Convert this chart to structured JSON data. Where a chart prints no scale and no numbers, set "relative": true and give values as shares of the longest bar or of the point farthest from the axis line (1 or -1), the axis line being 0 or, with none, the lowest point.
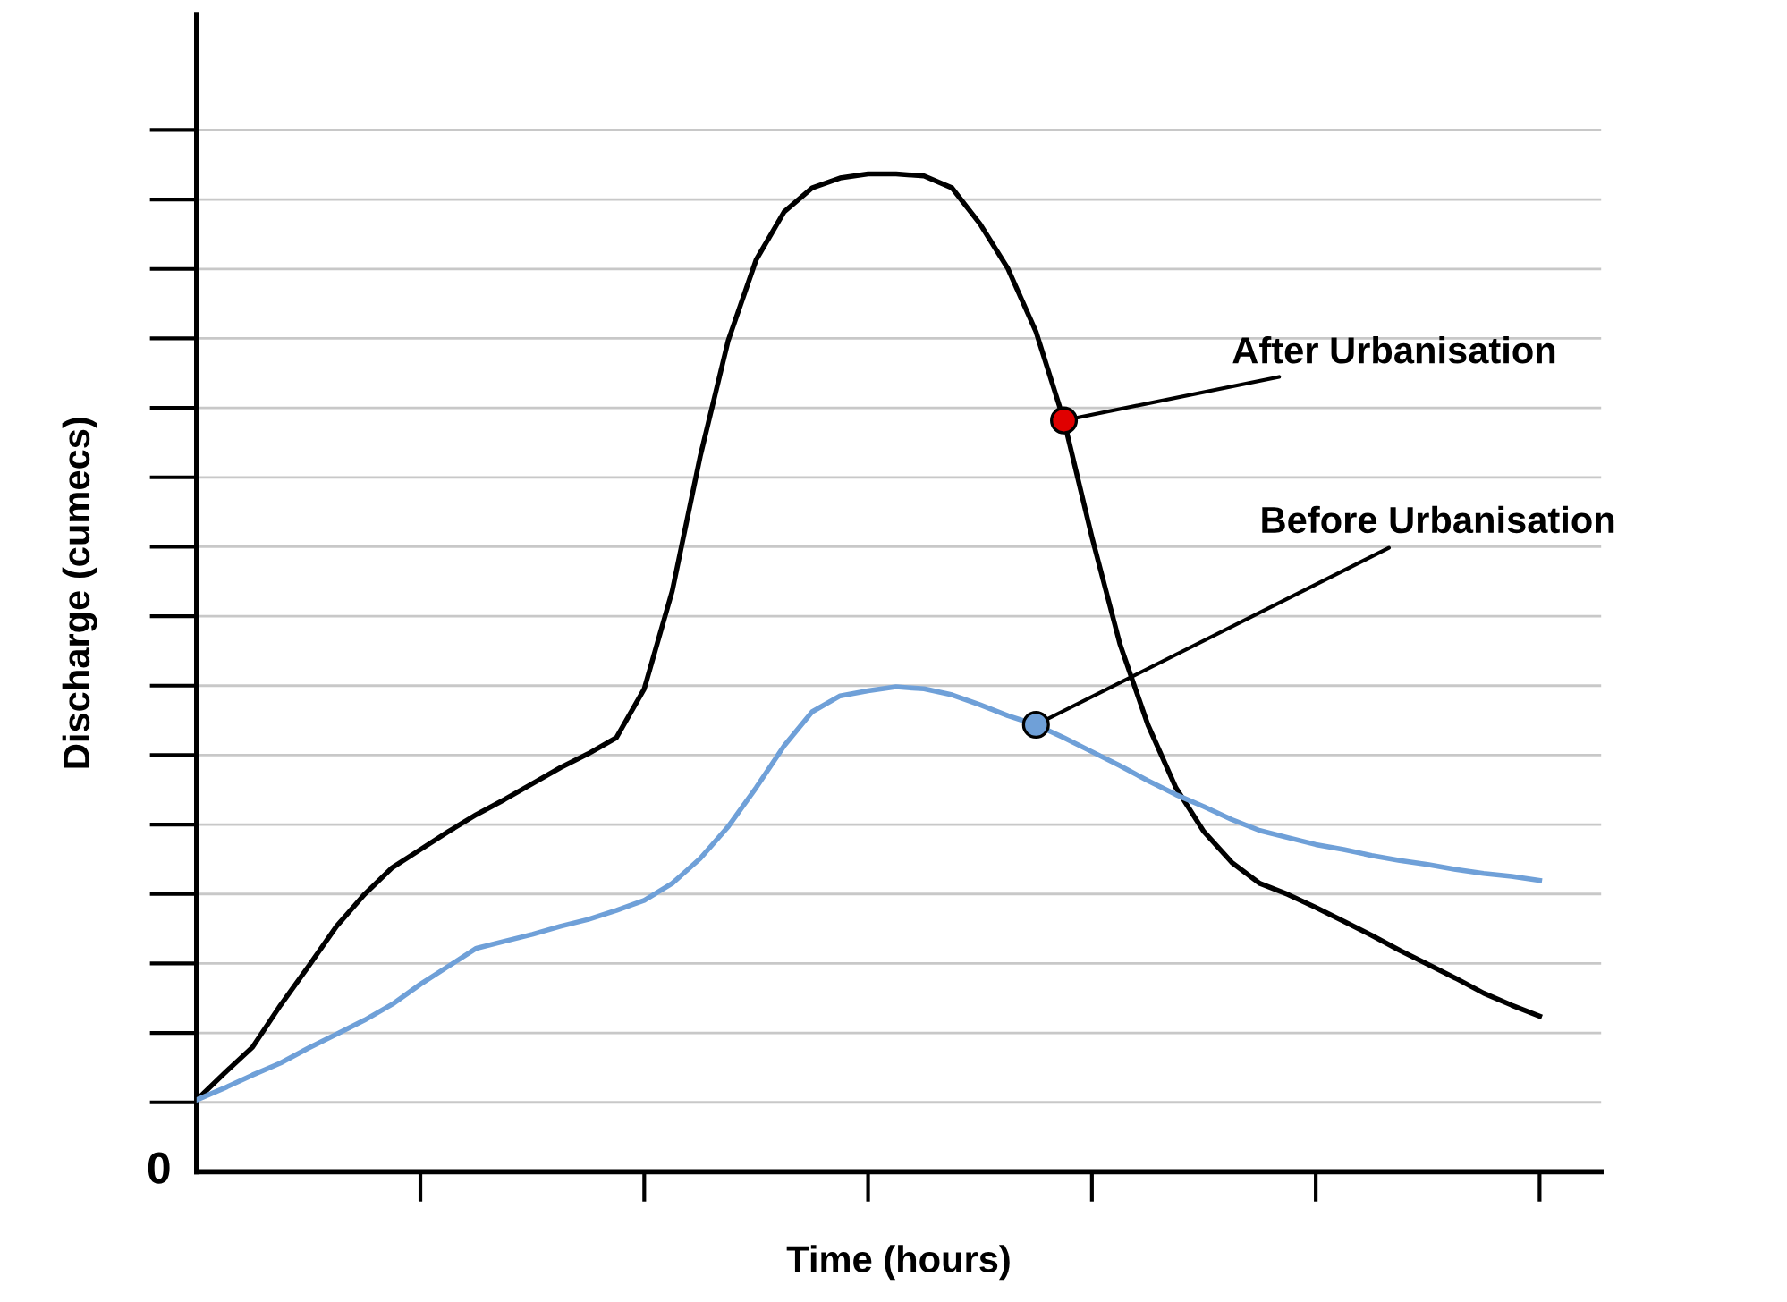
{
  "chart_data": {
    "type": "line",
    "relative": true,
    "xlabel": "Time (hours)",
    "ylabel": "Discharge (cumecs)",
    "annotations": [
      "0"
    ],
    "categories": [
      null,
      null,
      null,
      null,
      null,
      null,
      null,
      null,
      null,
      null,
      null,
      null,
      null,
      null,
      null,
      null,
      null,
      null,
      null,
      null,
      null,
      null,
      null,
      null,
      null,
      null,
      null,
      null,
      null,
      null,
      null,
      null,
      null,
      null,
      null,
      null,
      null,
      null,
      null,
      null,
      null,
      null,
      null,
      null,
      null,
      null,
      null,
      null,
      null
    ],
    "grid": "y",
    "marker": "none",
    "line_style": "solid",
    "series": [
      {
        "name": "After Urbanisation",
        "color": "#000000",
        "values": [
          0.072,
          0.099,
          0.125,
          0.167,
          0.206,
          0.246,
          0.278,
          0.305,
          0.323,
          0.341,
          0.358,
          0.373,
          0.389,
          0.405,
          0.419,
          0.435,
          0.484,
          0.582,
          0.717,
          0.833,
          0.914,
          0.962,
          0.986,
          0.996,
          1.0,
          1.0,
          0.998,
          0.986,
          0.95,
          0.905,
          0.842,
          0.753,
          0.636,
          0.529,
          0.448,
          0.385,
          0.341,
          0.31,
          0.289,
          0.278,
          0.265,
          0.251,
          0.237,
          0.222,
          0.208,
          0.194,
          0.179,
          0.167,
          0.156
        ]
      },
      {
        "name": "Before Urbanisation",
        "color": "#6fa0d8",
        "values": [
          0.072,
          0.084,
          0.097,
          0.109,
          0.124,
          0.138,
          0.152,
          0.168,
          0.188,
          0.206,
          0.224,
          0.231,
          0.238,
          0.246,
          0.253,
          0.262,
          0.272,
          0.289,
          0.314,
          0.346,
          0.385,
          0.427,
          0.461,
          0.477,
          0.482,
          0.486,
          0.484,
          0.478,
          0.468,
          0.457,
          0.448,
          0.435,
          0.421,
          0.407,
          0.392,
          0.378,
          0.366,
          0.353,
          0.342,
          0.335,
          0.328,
          0.323,
          0.317,
          0.312,
          0.308,
          0.303,
          0.299,
          0.296,
          0.292
        ]
      }
    ]
  }
}
